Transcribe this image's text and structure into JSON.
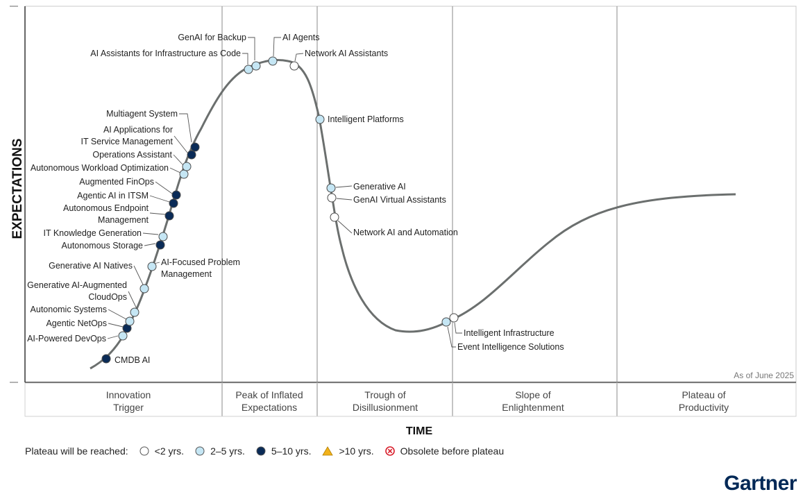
{
  "chart_data": {
    "type": "hype-cycle",
    "xlabel": "TIME",
    "ylabel": "EXPECTATIONS",
    "as_of": "As of June 2025",
    "phases": [
      {
        "key": "innovation",
        "lines": [
          "Innovation",
          "Trigger"
        ]
      },
      {
        "key": "peak",
        "lines": [
          "Peak of Inflated",
          "Expectations"
        ]
      },
      {
        "key": "trough",
        "lines": [
          "Trough of",
          "Disillusionment"
        ]
      },
      {
        "key": "slope",
        "lines": [
          "Slope of",
          "Enlightenment"
        ]
      },
      {
        "key": "plateau",
        "lines": [
          "Plateau of",
          "Productivity"
        ]
      }
    ],
    "technologies": [
      {
        "name": "CMDB AI",
        "years": "5-10"
      },
      {
        "name": "AI-Powered DevOps",
        "years": "2-5"
      },
      {
        "name": "Agentic NetOps",
        "years": "5-10"
      },
      {
        "name": "Autonomic Systems",
        "years": "2-5"
      },
      {
        "name": "Generative AI-Augmented CloudOps",
        "years": "2-5"
      },
      {
        "name": "Generative AI Natives",
        "years": "2-5"
      },
      {
        "name": "AI-Focused Problem Management",
        "years": "2-5"
      },
      {
        "name": "Autonomous Storage",
        "years": "5-10"
      },
      {
        "name": "IT Knowledge Generation",
        "years": "2-5"
      },
      {
        "name": "Autonomous Endpoint Management",
        "years": "5-10"
      },
      {
        "name": "Agentic AI in ITSM",
        "years": "5-10"
      },
      {
        "name": "Augmented FinOps",
        "years": "5-10"
      },
      {
        "name": "Autonomous Workload Optimization",
        "years": "2-5"
      },
      {
        "name": "Operations Assistant",
        "years": "2-5"
      },
      {
        "name": "AI Applications for IT Service Management",
        "years": "5-10"
      },
      {
        "name": "Multiagent System",
        "years": "5-10"
      },
      {
        "name": "AI Assistants for Infrastructure as Code",
        "years": "2-5"
      },
      {
        "name": "GenAI for Backup",
        "years": "2-5"
      },
      {
        "name": "AI Agents",
        "years": "2-5"
      },
      {
        "name": "Network AI Assistants",
        "years": "<2"
      },
      {
        "name": "Intelligent Platforms",
        "years": "2-5"
      },
      {
        "name": "Generative AI",
        "years": "2-5"
      },
      {
        "name": "GenAI Virtual Assistants",
        "years": "<2"
      },
      {
        "name": "Network AI and Automation",
        "years": "<2"
      },
      {
        "name": "Event Intelligence Solutions",
        "years": "2-5"
      },
      {
        "name": "Intelligent Infrastructure",
        "years": "<2"
      }
    ]
  },
  "legend": {
    "prefix": "Plateau will be reached:",
    "items": [
      {
        "key": "lt2",
        "label": "<2 yrs."
      },
      {
        "key": "2to5",
        "label": "2–5 yrs."
      },
      {
        "key": "5to10",
        "label": "5–10 yrs."
      },
      {
        "key": "gt10",
        "label": ">10 yrs."
      },
      {
        "key": "obsolete",
        "label": "Obsolete before plateau"
      }
    ]
  },
  "brand": "Gartner",
  "colors": {
    "lt2": "#ffffff",
    "2to5": "#c5e6f4",
    "5to10": "#0a2b57",
    "gt10": "#f2b21b",
    "obsolete": "#d81e2b",
    "curve": "#6b6f6e",
    "grid": "#8a8a8a"
  }
}
